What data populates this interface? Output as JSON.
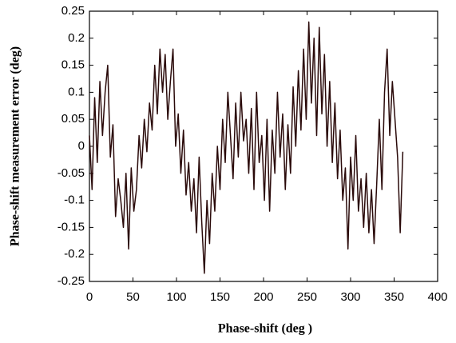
{
  "chart_data": {
    "type": "line",
    "x_label": "Phase-shift (deg )",
    "y_label": "Phase-shift measurement error (deg)",
    "x": [
      0,
      3,
      6,
      9,
      12,
      15,
      18,
      21,
      24,
      27,
      30,
      33,
      36,
      39,
      42,
      45,
      48,
      51,
      54,
      57,
      60,
      63,
      66,
      69,
      72,
      75,
      78,
      81,
      84,
      87,
      90,
      93,
      96,
      99,
      102,
      105,
      108,
      111,
      114,
      117,
      120,
      123,
      126,
      129,
      132,
      135,
      138,
      141,
      144,
      147,
      150,
      153,
      156,
      159,
      162,
      165,
      168,
      171,
      174,
      177,
      180,
      183,
      186,
      189,
      192,
      195,
      198,
      201,
      204,
      207,
      210,
      213,
      216,
      219,
      222,
      225,
      228,
      231,
      234,
      237,
      240,
      243,
      246,
      249,
      252,
      255,
      258,
      261,
      264,
      267,
      270,
      273,
      276,
      279,
      282,
      285,
      288,
      291,
      294,
      297,
      300,
      303,
      306,
      309,
      312,
      315,
      318,
      321,
      324,
      327,
      330,
      333,
      336,
      339,
      342,
      345,
      348,
      351,
      354,
      357,
      360
    ],
    "series": [
      {
        "color": "#2a0a0a",
        "values": [
          0.02,
          -0.08,
          0.09,
          -0.03,
          0.12,
          0.02,
          0.1,
          0.15,
          -0.02,
          0.04,
          -0.13,
          -0.06,
          -0.1,
          -0.15,
          -0.05,
          -0.19,
          -0.04,
          -0.12,
          -0.08,
          0.02,
          -0.04,
          0.05,
          -0.01,
          0.08,
          0.03,
          0.15,
          0.06,
          0.18,
          0.1,
          0.17,
          0.05,
          0.12,
          0.18,
          0.0,
          0.06,
          -0.05,
          0.03,
          -0.09,
          -0.03,
          -0.12,
          -0.06,
          -0.16,
          -0.02,
          -0.14,
          -0.235,
          -0.1,
          -0.18,
          -0.05,
          -0.12,
          0.0,
          -0.08,
          0.05,
          -0.03,
          0.1,
          0.02,
          -0.06,
          0.08,
          -0.02,
          0.1,
          0.01,
          0.05,
          -0.05,
          0.07,
          -0.08,
          0.1,
          -0.03,
          0.02,
          -0.1,
          0.05,
          -0.12,
          0.03,
          -0.05,
          0.1,
          -0.02,
          0.06,
          -0.08,
          0.04,
          -0.05,
          0.11,
          0.0,
          0.14,
          0.03,
          0.18,
          0.05,
          0.23,
          0.08,
          0.2,
          0.02,
          0.22,
          0.06,
          0.17,
          0.0,
          0.12,
          -0.03,
          0.08,
          -0.06,
          0.03,
          -0.1,
          -0.04,
          -0.19,
          -0.02,
          -0.1,
          0.02,
          -0.12,
          -0.06,
          -0.15,
          -0.05,
          -0.16,
          -0.08,
          -0.18,
          -0.07,
          0.05,
          -0.08,
          0.1,
          0.18,
          0.02,
          0.12,
          0.05,
          -0.02,
          -0.16,
          -0.01
        ]
      }
    ],
    "xlim": [
      0,
      400
    ],
    "xticks": [
      0,
      50,
      100,
      150,
      200,
      250,
      300,
      350,
      400
    ],
    "ylim": [
      -0.25,
      0.25
    ],
    "yticks": [
      -0.25,
      -0.2,
      -0.15,
      -0.1,
      -0.05,
      0,
      0.05,
      0.1,
      0.15,
      0.2,
      0.25
    ],
    "grid": false
  }
}
